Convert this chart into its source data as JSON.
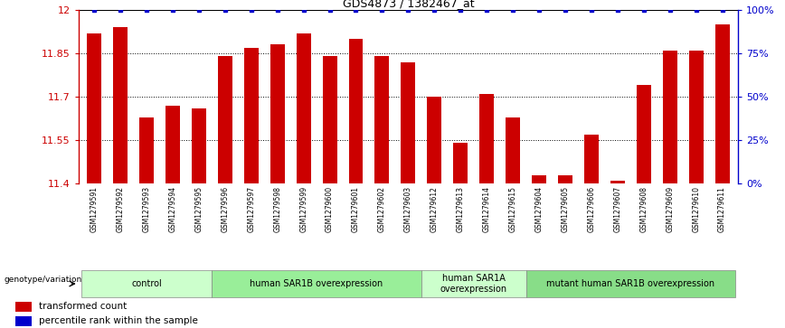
{
  "title": "GDS4873 / 1382467_at",
  "samples": [
    "GSM1279591",
    "GSM1279592",
    "GSM1279593",
    "GSM1279594",
    "GSM1279595",
    "GSM1279596",
    "GSM1279597",
    "GSM1279598",
    "GSM1279599",
    "GSM1279600",
    "GSM1279601",
    "GSM1279602",
    "GSM1279603",
    "GSM1279612",
    "GSM1279613",
    "GSM1279614",
    "GSM1279615",
    "GSM1279604",
    "GSM1279605",
    "GSM1279606",
    "GSM1279607",
    "GSM1279608",
    "GSM1279609",
    "GSM1279610",
    "GSM1279611"
  ],
  "bar_values": [
    11.92,
    11.94,
    11.63,
    11.67,
    11.66,
    11.84,
    11.87,
    11.88,
    11.92,
    11.84,
    11.9,
    11.84,
    11.82,
    11.7,
    11.54,
    11.71,
    11.63,
    11.43,
    11.43,
    11.57,
    11.41,
    11.74,
    11.86,
    11.86,
    11.95
  ],
  "percentile_values": [
    100,
    100,
    100,
    100,
    100,
    100,
    100,
    100,
    100,
    100,
    100,
    100,
    100,
    100,
    100,
    100,
    100,
    100,
    100,
    100,
    100,
    100,
    100,
    100,
    100
  ],
  "bar_color": "#cc0000",
  "percentile_color": "#0000cc",
  "ylim_left": [
    11.4,
    12.0
  ],
  "ylim_right": [
    0,
    100
  ],
  "yticks_left": [
    11.4,
    11.55,
    11.7,
    11.85,
    12.0
  ],
  "ytick_labels_left": [
    "11.4",
    "11.55",
    "11.7",
    "11.85",
    "12"
  ],
  "yticks_right": [
    0,
    25,
    50,
    75,
    100
  ],
  "ytick_labels_right": [
    "0%",
    "25%",
    "50%",
    "75%",
    "100%"
  ],
  "groups": [
    {
      "label": "control",
      "start": 0,
      "end": 5,
      "color": "#ccffcc"
    },
    {
      "label": "human SAR1B overexpression",
      "start": 5,
      "end": 13,
      "color": "#99ee99"
    },
    {
      "label": "human SAR1A\noverexpression",
      "start": 13,
      "end": 17,
      "color": "#ccffcc"
    },
    {
      "label": "mutant human SAR1B overexpression",
      "start": 17,
      "end": 25,
      "color": "#88dd88"
    }
  ],
  "genotype_label": "genotype/variation",
  "legend_bar_label": "transformed count",
  "legend_pct_label": "percentile rank within the sample",
  "dotted_gridlines": [
    11.55,
    11.7,
    11.85
  ]
}
